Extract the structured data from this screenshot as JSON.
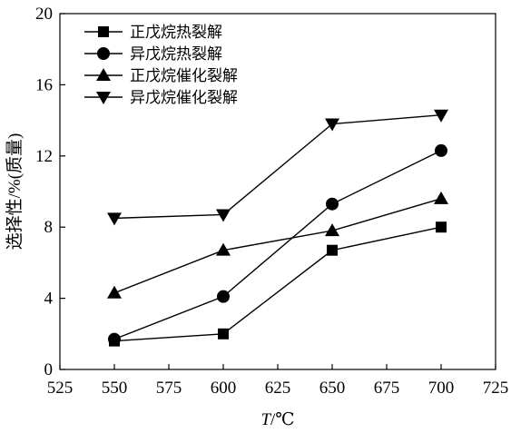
{
  "chart_data": {
    "type": "line",
    "xlabel_italic": "T",
    "xlabel_unit": "/℃",
    "ylabel": "选择性/%(质量)",
    "xlim": [
      525,
      725
    ],
    "ylim": [
      0,
      20
    ],
    "xticks": [
      "525",
      "550",
      "575",
      "600",
      "625",
      "650",
      "675",
      "700",
      "725"
    ],
    "yticks": [
      "0",
      "4",
      "8",
      "12",
      "16",
      "20"
    ],
    "x": [
      550,
      600,
      650,
      700
    ],
    "legend_position": "top-left",
    "series": [
      {
        "name": "正戊烷热裂解",
        "marker": "square",
        "values": [
          1.6,
          2.0,
          6.7,
          8.0
        ]
      },
      {
        "name": "异戊烷热裂解",
        "marker": "circle",
        "values": [
          1.7,
          4.1,
          9.3,
          12.3
        ]
      },
      {
        "name": "正戊烷催化裂解",
        "marker": "triangle-up",
        "values": [
          4.3,
          6.7,
          7.8,
          9.6
        ]
      },
      {
        "name": "异戊烷催化裂解",
        "marker": "triangle-down",
        "values": [
          8.5,
          8.7,
          13.8,
          14.3
        ]
      }
    ]
  }
}
